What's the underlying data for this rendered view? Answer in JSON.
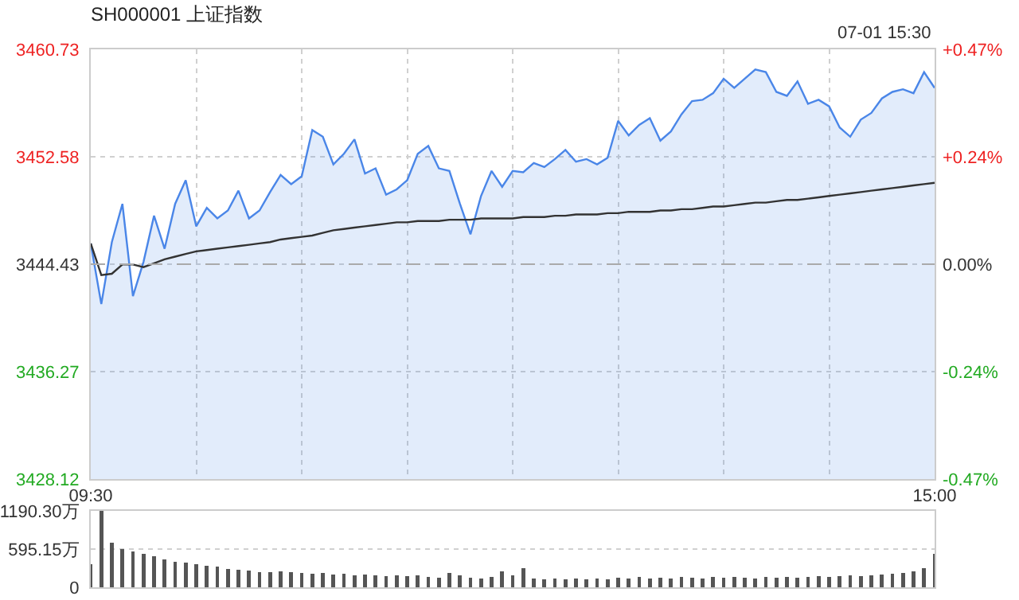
{
  "chart_data": [
    {
      "type": "line",
      "title": "SH000001 上证指数",
      "annotations": [
        "07-01 15:30"
      ],
      "categories": [
        "09:30",
        null,
        null,
        null,
        null,
        null,
        null,
        null,
        null,
        null,
        null,
        null,
        null,
        null,
        null,
        null,
        null,
        null,
        null,
        null,
        null,
        null,
        null,
        null,
        null,
        null,
        null,
        null,
        null,
        null,
        null,
        null,
        null,
        null,
        null,
        null,
        null,
        null,
        null,
        null,
        null,
        null,
        null,
        null,
        null,
        null,
        null,
        null,
        null,
        null,
        null,
        null,
        null,
        null,
        null,
        null,
        null,
        null,
        null,
        null,
        null,
        null,
        null,
        null,
        null,
        null,
        null,
        null,
        null,
        null,
        null,
        null,
        null,
        null,
        null,
        null,
        null,
        null,
        null,
        null,
        "15:00"
      ],
      "series": [
        {
          "type": "area",
          "color": "#4a86e8",
          "values": [
            3446.0,
            3441.4,
            3446.1,
            3449.0,
            3442.0,
            3444.6,
            3448.1,
            3445.6,
            3449.0,
            3450.8,
            3447.3,
            3448.7,
            3447.9,
            3448.5,
            3450.0,
            3447.9,
            3448.5,
            3449.9,
            3451.2,
            3450.5,
            3451.1,
            3454.6,
            3454.1,
            3452.0,
            3452.8,
            3453.9,
            3451.3,
            3451.7,
            3449.7,
            3450.1,
            3450.8,
            3452.8,
            3453.4,
            3451.7,
            3451.5,
            3449.0,
            3446.7,
            3449.6,
            3451.5,
            3450.3,
            3451.5,
            3451.4,
            3452.1,
            3451.8,
            3452.4,
            3453.1,
            3452.2,
            3452.4,
            3452.0,
            3452.5,
            3455.3,
            3454.2,
            3455.0,
            3455.5,
            3453.8,
            3454.5,
            3455.8,
            3456.8,
            3456.9,
            3457.4,
            3458.5,
            3457.8,
            3458.5,
            3459.2,
            3459.0,
            3457.5,
            3457.2,
            3458.3,
            3456.6,
            3456.9,
            3456.4,
            3454.8,
            3454.1,
            3455.4,
            3455.9,
            3457.0,
            3457.5,
            3457.7,
            3457.4,
            3459.0,
            3457.8
          ]
        },
        {
          "type": "line",
          "color": "#333333",
          "values": [
            3446.0,
            3443.6,
            3443.7,
            3444.4,
            3444.4,
            3444.2,
            3444.5,
            3444.8,
            3445.0,
            3445.2,
            3445.4,
            3445.5,
            3445.6,
            3445.7,
            3445.8,
            3445.9,
            3446.0,
            3446.1,
            3446.3,
            3446.4,
            3446.5,
            3446.6,
            3446.8,
            3447.0,
            3447.1,
            3447.2,
            3447.3,
            3447.4,
            3447.5,
            3447.6,
            3447.6,
            3447.7,
            3447.7,
            3447.7,
            3447.8,
            3447.8,
            3447.8,
            3447.9,
            3447.9,
            3447.9,
            3447.9,
            3448.0,
            3448.0,
            3448.0,
            3448.1,
            3448.1,
            3448.2,
            3448.2,
            3448.2,
            3448.3,
            3448.3,
            3448.4,
            3448.4,
            3448.4,
            3448.5,
            3448.5,
            3448.6,
            3448.6,
            3448.7,
            3448.8,
            3448.8,
            3448.9,
            3449.0,
            3449.1,
            3449.1,
            3449.2,
            3449.3,
            3449.3,
            3449.4,
            3449.5,
            3449.6,
            3449.7,
            3449.8,
            3449.9,
            3450.0,
            3450.1,
            3450.2,
            3450.3,
            3450.4,
            3450.5,
            3450.6
          ]
        }
      ],
      "ylim": [
        3428.12,
        3460.73
      ],
      "yticks": [
        3428.12,
        3436.27,
        3444.43,
        3452.58,
        3460.73
      ],
      "y2lim": [
        -0.4735,
        0.4735
      ],
      "y2ticks": [
        {
          "value": -0.4735,
          "label": "-0.47%"
        },
        {
          "value": -0.2367,
          "label": "-0.24%"
        },
        {
          "value": 0,
          "label": "0.00%"
        },
        {
          "value": 0.2367,
          "label": "+0.24%"
        },
        {
          "value": 0.4735,
          "label": "+0.47%"
        }
      ],
      "ref_lines": [
        {
          "axis": "y",
          "value": 3444.43,
          "color": "#aaaaaa",
          "line_style": "dashed"
        }
      ],
      "grid": true
    },
    {
      "type": "bar",
      "color": "#555555",
      "categories": [
        null,
        null,
        null,
        null,
        null,
        null,
        null,
        null,
        null,
        null,
        null,
        null,
        null,
        null,
        null,
        null,
        null,
        null,
        null,
        null,
        null,
        null,
        null,
        null,
        null,
        null,
        null,
        null,
        null,
        null,
        null,
        null,
        null,
        null,
        null,
        null,
        null,
        null,
        null,
        null,
        null,
        null,
        null,
        null,
        null,
        null,
        null,
        null,
        null,
        null,
        null,
        null,
        null,
        null,
        null,
        null,
        null,
        null,
        null,
        null,
        null,
        null,
        null,
        null,
        null,
        null,
        null,
        null,
        null,
        null,
        null,
        null,
        null,
        null,
        null,
        null,
        null,
        null,
        null,
        null,
        null
      ],
      "values": [
        360,
        1190.3,
        700,
        600,
        560,
        520,
        480,
        440,
        400,
        380,
        360,
        340,
        320,
        290,
        270,
        260,
        240,
        230,
        250,
        230,
        220,
        210,
        220,
        200,
        210,
        190,
        200,
        180,
        170,
        190,
        170,
        180,
        160,
        150,
        220,
        190,
        150,
        140,
        160,
        250,
        180,
        300,
        140,
        130,
        140,
        130,
        140,
        130,
        140,
        130,
        150,
        140,
        160,
        140,
        150,
        140,
        160,
        150,
        140,
        160,
        150,
        160,
        150,
        140,
        160,
        150,
        160,
        150,
        160,
        170,
        160,
        170,
        180,
        170,
        190,
        200,
        210,
        220,
        250,
        300,
        520
      ],
      "ylim": [
        0,
        1190.3
      ],
      "yticks": [
        0,
        {
          "value": 595.15,
          "label": "595.15万"
        },
        {
          "value": 1190.3,
          "label": "1190.30万"
        }
      ],
      "grid": "y",
      "tick_labels": "y"
    }
  ]
}
